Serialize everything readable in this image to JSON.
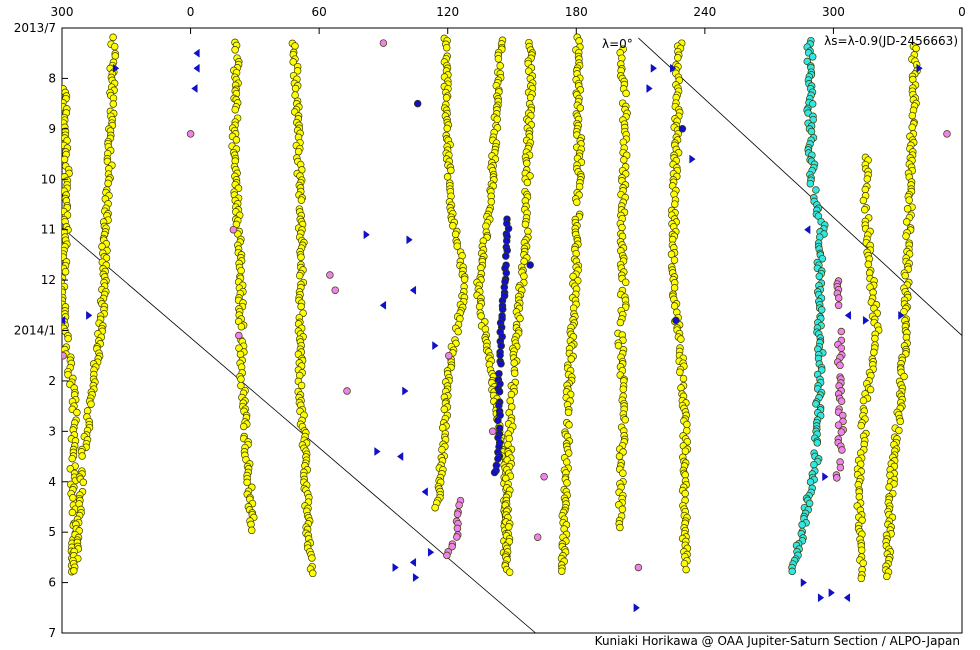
{
  "chart_data": {
    "type": "scatter",
    "title": "",
    "xlabel": "",
    "ylabel": "",
    "x_axis": {
      "ticks": [
        {
          "value": 0,
          "label": "300"
        },
        {
          "value": 60,
          "label": "0"
        },
        {
          "value": 120,
          "label": "60"
        },
        {
          "value": 180,
          "label": "120"
        },
        {
          "value": 240,
          "label": "180"
        },
        {
          "value": 300,
          "label": "240"
        },
        {
          "value": 360,
          "label": "300"
        },
        {
          "value": 420,
          "label": "0"
        }
      ],
      "range": [
        0,
        420
      ],
      "direction": "decreasing to the right (System II longitude, wrapped)"
    },
    "y_axis": {
      "ticks": [
        {
          "value": 0,
          "label": "2013/7"
        },
        {
          "value": 1,
          "label": "8"
        },
        {
          "value": 2,
          "label": "9"
        },
        {
          "value": 3,
          "label": "10"
        },
        {
          "value": 4,
          "label": "11"
        },
        {
          "value": 5,
          "label": "12"
        },
        {
          "value": 6,
          "label": "2014/1"
        },
        {
          "value": 7,
          "label": "2"
        },
        {
          "value": 8,
          "label": "3"
        },
        {
          "value": 9,
          "label": "4"
        },
        {
          "value": 10,
          "label": "5"
        },
        {
          "value": 11,
          "label": "6"
        },
        {
          "value": 12,
          "label": "7"
        }
      ],
      "range": [
        0,
        12
      ]
    },
    "annotations": {
      "lambda_label": "λ=0°",
      "corner_label": "λs=λ-0.9(JD-2456663)",
      "credit": "Kuniaki Horikawa @ OAA Jupiter-Saturn Section / ALPO-Japan"
    },
    "reference_lines": [
      {
        "name": "λ=0°",
        "points": [
          [
            0,
            3.96
          ],
          [
            221,
            12.0
          ]
        ]
      },
      {
        "name": "λ=0°",
        "points": [
          [
            269,
            0.2
          ],
          [
            420,
            6.1
          ]
        ]
      }
    ],
    "colors": {
      "yellow": "#ffff00",
      "cyan": "#33e6e6",
      "pink": "#ee82ee",
      "blue": "#1010c8",
      "stroke": "#3a3a00"
    },
    "series": [
      {
        "color": "yellow",
        "tracks": [
          {
            "pts": [
              [
                1,
                1.2
              ],
              [
                2.5,
                3
              ],
              [
                0.5,
                5
              ],
              [
                1,
                5.9
              ],
              [
                6,
                7.5
              ],
              [
                5,
                9
              ],
              [
                6,
                10
              ],
              [
                5,
                10.8
              ]
            ],
            "step": 0.07,
            "jitter": 1.3
          },
          {
            "pts": [
              [
                24,
                0.2
              ],
              [
                22.5,
                2.5
              ],
              [
                20,
                4
              ],
              [
                19.5,
                5.2
              ],
              [
                17.5,
                6.2
              ],
              [
                14,
                7.3
              ],
              [
                10,
                8.5
              ],
              [
                7,
                10
              ],
              [
                6,
                10.8
              ]
            ],
            "step": 0.06,
            "jitter": 1.2
          },
          {
            "pts": [
              [
                81.5,
                0.3
              ],
              [
                80.5,
                2.5
              ],
              [
                82.5,
                4
              ],
              [
                83.5,
                5.5
              ],
              [
                84,
                7
              ],
              [
                86.5,
                8.5
              ],
              [
                88,
                9.5
              ],
              [
                89,
                10
              ]
            ],
            "step": 0.06,
            "jitter": 1.2
          },
          {
            "pts": [
              [
                108.5,
                0.3
              ],
              [
                110.5,
                2.5
              ],
              [
                112,
                4.5
              ],
              [
                111.5,
                6
              ],
              [
                111,
                7
              ],
              [
                113.5,
                8.5
              ],
              [
                115,
                10
              ],
              [
                116,
                10.8
              ]
            ],
            "step": 0.06,
            "jitter": 1.2
          },
          {
            "pts": [
              [
                179,
                0.2
              ],
              [
                179.5,
                1.5
              ],
              [
                181,
                3.5
              ],
              [
                186,
                4.5
              ],
              [
                188,
                5.2
              ],
              [
                184,
                6
              ],
              [
                180,
                7
              ],
              [
                178,
                8.2
              ],
              [
                176.5,
                9
              ],
              [
                175,
                9.5
              ]
            ],
            "step": 0.06,
            "jitter": 1.0
          },
          {
            "pts": [
              [
                205,
                0.2
              ],
              [
                203,
                1.5
              ],
              [
                200,
                3.5
              ],
              [
                196,
                4.5
              ],
              [
                194,
                5.2
              ],
              [
                197,
                6
              ],
              [
                201,
                7
              ],
              [
                206,
                8.5
              ],
              [
                207,
                9.5
              ],
              [
                207,
                10.5
              ]
            ],
            "step": 0.06,
            "jitter": 1.0
          },
          {
            "pts": [
              [
                219,
                0.3
              ],
              [
                217.5,
                2.5
              ],
              [
                217,
                4
              ],
              [
                214,
                5.3
              ],
              [
                212,
                6
              ],
              [
                210,
                7.5
              ],
              [
                208,
                9
              ],
              [
                208,
                10.8
              ]
            ],
            "step": 0.06,
            "jitter": 1.2
          },
          {
            "pts": [
              [
                240.5,
                0.2
              ],
              [
                241.5,
                2.5
              ],
              [
                240,
                4.5
              ],
              [
                239,
                5.5
              ],
              [
                238,
                6
              ],
              [
                236,
                7.5
              ],
              [
                235,
                9
              ],
              [
                234,
                10.8
              ]
            ],
            "step": 0.06,
            "jitter": 1.2
          },
          {
            "pts": [
              [
                261,
                0.3
              ],
              [
                263,
                2
              ],
              [
                261.5,
                4
              ],
              [
                262,
                5.5
              ],
              [
                260.5,
                6
              ],
              [
                262,
                7.5
              ],
              [
                261,
                9
              ],
              [
                261,
                10
              ]
            ],
            "step": 0.07,
            "jitter": 1.2
          },
          {
            "pts": [
              [
                288,
                0.3
              ],
              [
                286.5,
                2.5
              ],
              [
                285,
                4.5
              ],
              [
                286,
                5.5
              ],
              [
                289,
                6.5
              ],
              [
                291,
                8
              ],
              [
                290.5,
                9.5
              ],
              [
                291,
                10.8
              ]
            ],
            "step": 0.06,
            "jitter": 1.2
          },
          {
            "pts": [
              [
                375,
                2.5
              ],
              [
                375,
                3.5
              ],
              [
                377,
                4.5
              ],
              [
                380,
                6
              ],
              [
                375,
                7.5
              ],
              [
                372,
                9
              ],
              [
                373,
                10.5
              ],
              [
                372,
                10.9
              ]
            ],
            "step": 0.07,
            "jitter": 1.3
          },
          {
            "pts": [
              [
                397.5,
                0.3
              ],
              [
                398,
                1
              ],
              [
                396,
                3
              ],
              [
                394,
                5
              ],
              [
                394,
                6
              ],
              [
                391,
                7.5
              ],
              [
                388,
                8.5
              ],
              [
                386,
                10
              ],
              [
                384.5,
                10.9
              ]
            ],
            "step": 0.06,
            "jitter": 1.2
          }
        ]
      },
      {
        "color": "cyan",
        "tracks": [
          {
            "pts": [
              [
                349,
                0.2
              ],
              [
                349,
                1.5
              ],
              [
                350,
                3
              ],
              [
                355,
                4
              ],
              [
                353,
                5
              ],
              [
                354,
                6.5
              ],
              [
                352,
                8.5
              ],
              [
                346,
                9.8
              ],
              [
                341,
                10.8
              ]
            ],
            "step": 0.06,
            "jitter": 1.4
          }
        ]
      },
      {
        "color": "pink",
        "tracks": [
          {
            "pts": [
              [
                362,
                5
              ],
              [
                362,
                5.5
              ]
            ],
            "step": 0.07,
            "jitter": 0.5
          },
          {
            "pts": [
              [
                363,
                6
              ],
              [
                363.5,
                8
              ],
              [
                362,
                9
              ]
            ],
            "step": 0.07,
            "jitter": 1.2
          },
          {
            "pts": [
              [
                185.5,
                9.4
              ],
              [
                184,
                10.1
              ],
              [
                179,
                10.5
              ]
            ],
            "step": 0.09,
            "jitter": 0.6
          }
        ]
      },
      {
        "color": "blue",
        "tracks": [
          {
            "pts": [
              [
                208,
                3.8
              ],
              [
                207,
                5
              ],
              [
                205,
                6
              ],
              [
                204,
                7
              ],
              [
                204,
                8.5
              ],
              [
                202,
                8.9
              ]
            ],
            "step": 0.09,
            "jitter": 0.6
          }
        ]
      }
    ],
    "scattered_points": [
      {
        "color": "pink",
        "points": [
          [
            150,
            0.3
          ],
          [
            60,
            2.1
          ],
          [
            80,
            4
          ],
          [
            413,
            2.1
          ],
          [
            125,
            4.9
          ],
          [
            127.5,
            5.2
          ],
          [
            82.5,
            6.1
          ],
          [
            133,
            7.2
          ],
          [
            180.5,
            6.5
          ],
          [
            201,
            8
          ],
          [
            225,
            8.9
          ],
          [
            222,
            10.1
          ],
          [
            269,
            10.7
          ],
          [
            0.5,
            6.5
          ]
        ]
      },
      {
        "color": "blue",
        "points": [
          [
            166,
            1.5
          ],
          [
            218.5,
            4.7
          ],
          [
            289.5,
            2.0
          ],
          [
            286.5,
            5.8
          ]
        ]
      }
    ],
    "markers": [
      {
        "color": "blue",
        "dir": "right",
        "points": [
          [
            25,
            0.8
          ],
          [
            12.5,
            5.7
          ],
          [
            276,
            0.8
          ],
          [
            400,
            0.8
          ],
          [
            375,
            5.8
          ],
          [
            391.5,
            5.7
          ],
          [
            356,
            8.9
          ],
          [
            155.5,
            10.7
          ],
          [
            354,
            11.3
          ],
          [
            359,
            11.2
          ],
          [
            346,
            11.0
          ],
          [
            142,
            4.1
          ],
          [
            162,
            4.2
          ],
          [
            174,
            6.3
          ],
          [
            160,
            7.2
          ],
          [
            147,
            8.4
          ],
          [
            172,
            10.4
          ],
          [
            165,
            10.9
          ],
          [
            285,
            0.8
          ],
          [
            274,
            1.2
          ],
          [
            294,
            2.6
          ],
          [
            268,
            11.5
          ]
        ]
      },
      {
        "color": "blue",
        "dir": "left",
        "points": [
          [
            0.3,
            5.8
          ],
          [
            63,
            0.5
          ],
          [
            63,
            0.8
          ],
          [
            62,
            1.2
          ],
          [
            164,
            5.2
          ],
          [
            158,
            8.5
          ],
          [
            348,
            4.0
          ],
          [
            367,
            5.7
          ],
          [
            366.5,
            11.3
          ],
          [
            164,
            10.6
          ],
          [
            169.5,
            9.2
          ],
          [
            150,
            5.5
          ]
        ]
      }
    ]
  }
}
